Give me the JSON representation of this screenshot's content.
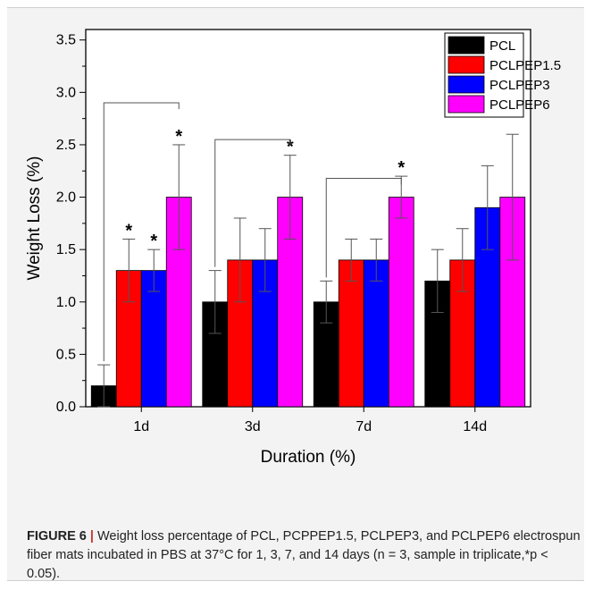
{
  "chart_data": {
    "type": "bar",
    "xlabel": "Duration (%)",
    "ylabel": "Weight Loss (%)",
    "ylim": [
      0,
      3.6
    ],
    "yticks": [
      "0.0",
      "0.5",
      "1.0",
      "1.5",
      "2.0",
      "2.5",
      "3.0",
      "3.5"
    ],
    "categories": [
      "1d",
      "3d",
      "7d",
      "14d"
    ],
    "legend_position": "top-right",
    "series": [
      {
        "name": "PCL",
        "color": "#000000",
        "values": [
          0.2,
          1.0,
          1.0,
          1.2
        ],
        "errors": [
          0.2,
          0.3,
          0.2,
          0.3
        ],
        "sig": [
          false,
          false,
          false,
          false
        ]
      },
      {
        "name": "PCLPEP1.5",
        "color": "#ff0000",
        "values": [
          1.3,
          1.4,
          1.4,
          1.4
        ],
        "errors": [
          0.3,
          0.4,
          0.2,
          0.3
        ],
        "sig": [
          true,
          false,
          false,
          false
        ]
      },
      {
        "name": "PCLPEP3",
        "color": "#0000ff",
        "values": [
          1.3,
          1.4,
          1.4,
          1.9
        ],
        "errors": [
          0.2,
          0.3,
          0.2,
          0.4
        ],
        "sig": [
          true,
          false,
          false,
          false
        ]
      },
      {
        "name": "PCLPEP6",
        "color": "#ff00ff",
        "values": [
          2.0,
          2.0,
          2.0,
          2.0
        ],
        "errors": [
          0.5,
          0.4,
          0.2,
          0.6
        ],
        "sig": [
          true,
          true,
          true,
          false
        ]
      }
    ],
    "brackets": [
      {
        "category": 0,
        "from": 0,
        "to": 3,
        "y": 2.9
      },
      {
        "category": 1,
        "from": 0,
        "to": 3,
        "y": 2.55
      },
      {
        "category": 2,
        "from": 0,
        "to": 3,
        "y": 2.18
      }
    ],
    "sig_marker": "*"
  },
  "caption": {
    "label": "FIGURE 6",
    "separator": "|",
    "text": "Weight loss percentage of PCL, PCPPEP1.5, PCLPEP3, and PCLPEP6 electrospun fiber mats incubated in PBS at 37°C for 1, 3, 7, and 14 days (n = 3, sample in triplicate,*p < 0.05)."
  }
}
